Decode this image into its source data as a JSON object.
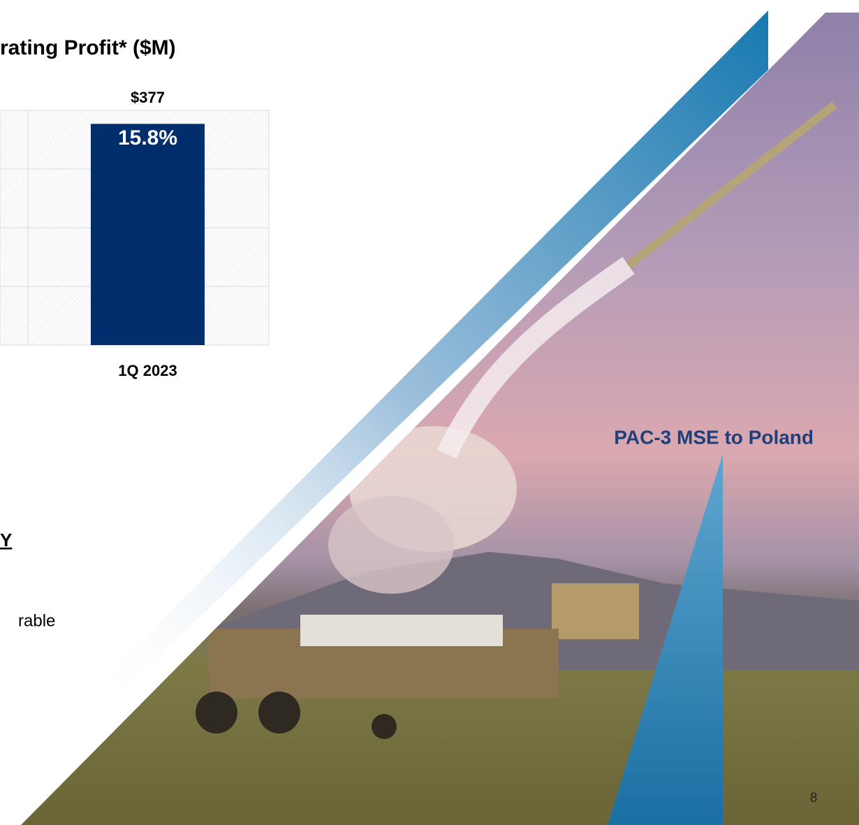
{
  "chart_data": {
    "type": "bar",
    "title": "rating Profit* ($M)",
    "categories": [
      "1Q 2023"
    ],
    "values": [
      377
    ],
    "value_labels": [
      "$377"
    ],
    "bar_annotations": [
      "15.8%"
    ],
    "color": "#002d6b",
    "ylim": [
      0,
      400
    ],
    "yticks": [
      0,
      100,
      200,
      300,
      400
    ],
    "grid": true
  },
  "slide": {
    "heading": "Y",
    "body": "rable",
    "caption": "PAC-3 MSE to Poland",
    "page_number": "8"
  }
}
